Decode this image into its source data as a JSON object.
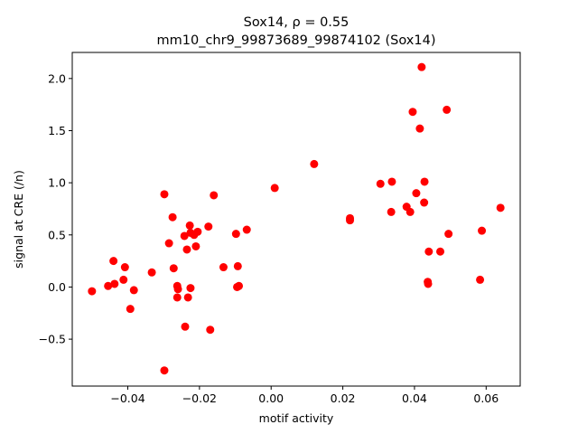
{
  "chart_data": {
    "type": "scatter",
    "title": "Sox14, ρ = 0.55",
    "subtitle": "mm10_chr9_99873689_99874102 (Sox14)",
    "xlabel": "motif activity",
    "ylabel": "signal at CRE (/n)",
    "xlim": [
      -0.0555,
      0.0695
    ],
    "ylim": [
      -0.95,
      2.25
    ],
    "xticks": [
      -0.04,
      -0.02,
      0.0,
      0.02,
      0.04,
      0.06
    ],
    "xtick_labels": [
      "−0.04",
      "−0.02",
      "0.00",
      "0.02",
      "0.04",
      "0.06"
    ],
    "yticks": [
      -0.5,
      0.0,
      0.5,
      1.0,
      1.5,
      2.0
    ],
    "ytick_labels": [
      "−0.5",
      "0.0",
      "0.5",
      "1.0",
      "1.5",
      "2.0"
    ],
    "grid": false,
    "marker_color": "#ff0000",
    "points": [
      {
        "x": -0.05,
        "y": -0.04
      },
      {
        "x": -0.0455,
        "y": 0.01
      },
      {
        "x": -0.044,
        "y": 0.25
      },
      {
        "x": -0.0437,
        "y": 0.03
      },
      {
        "x": -0.0412,
        "y": 0.07
      },
      {
        "x": -0.0408,
        "y": 0.19
      },
      {
        "x": -0.0393,
        "y": -0.21
      },
      {
        "x": -0.0383,
        "y": -0.03
      },
      {
        "x": -0.0333,
        "y": 0.14
      },
      {
        "x": -0.0298,
        "y": 0.89
      },
      {
        "x": -0.0298,
        "y": -0.8
      },
      {
        "x": -0.0285,
        "y": 0.42
      },
      {
        "x": -0.0275,
        "y": 0.67
      },
      {
        "x": -0.0272,
        "y": 0.18
      },
      {
        "x": -0.0262,
        "y": -0.1
      },
      {
        "x": -0.0262,
        "y": 0.01
      },
      {
        "x": -0.026,
        "y": -0.02
      },
      {
        "x": -0.0242,
        "y": 0.49
      },
      {
        "x": -0.024,
        "y": -0.38
      },
      {
        "x": -0.0235,
        "y": 0.36
      },
      {
        "x": -0.0232,
        "y": -0.1
      },
      {
        "x": -0.0227,
        "y": 0.59
      },
      {
        "x": -0.0225,
        "y": 0.52
      },
      {
        "x": -0.0225,
        "y": -0.01
      },
      {
        "x": -0.0215,
        "y": 0.5
      },
      {
        "x": -0.021,
        "y": 0.39
      },
      {
        "x": -0.0205,
        "y": 0.53
      },
      {
        "x": -0.0175,
        "y": 0.58
      },
      {
        "x": -0.017,
        "y": -0.41
      },
      {
        "x": -0.016,
        "y": 0.88
      },
      {
        "x": -0.0133,
        "y": 0.19
      },
      {
        "x": -0.0098,
        "y": 0.51
      },
      {
        "x": -0.0095,
        "y": 0.0
      },
      {
        "x": -0.0093,
        "y": 0.2
      },
      {
        "x": -0.009,
        "y": 0.01
      },
      {
        "x": -0.0068,
        "y": 0.55
      },
      {
        "x": 0.001,
        "y": 0.95
      },
      {
        "x": 0.012,
        "y": 1.18
      },
      {
        "x": 0.022,
        "y": 0.66
      },
      {
        "x": 0.022,
        "y": 0.64
      },
      {
        "x": 0.0305,
        "y": 0.99
      },
      {
        "x": 0.0335,
        "y": 0.72
      },
      {
        "x": 0.0337,
        "y": 1.01
      },
      {
        "x": 0.0378,
        "y": 0.77
      },
      {
        "x": 0.0388,
        "y": 0.72
      },
      {
        "x": 0.0395,
        "y": 1.68
      },
      {
        "x": 0.0405,
        "y": 0.9
      },
      {
        "x": 0.0415,
        "y": 1.52
      },
      {
        "x": 0.042,
        "y": 2.11
      },
      {
        "x": 0.0427,
        "y": 0.81
      },
      {
        "x": 0.0428,
        "y": 1.01
      },
      {
        "x": 0.0437,
        "y": 0.05
      },
      {
        "x": 0.0438,
        "y": 0.03
      },
      {
        "x": 0.044,
        "y": 0.34
      },
      {
        "x": 0.0472,
        "y": 0.34
      },
      {
        "x": 0.049,
        "y": 1.7
      },
      {
        "x": 0.0495,
        "y": 0.51
      },
      {
        "x": 0.0583,
        "y": 0.07
      },
      {
        "x": 0.0588,
        "y": 0.54
      },
      {
        "x": 0.064,
        "y": 0.76
      }
    ]
  }
}
